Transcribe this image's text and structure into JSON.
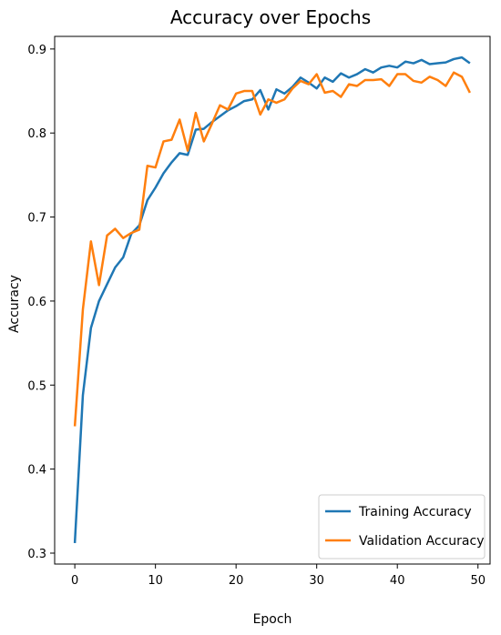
{
  "chart_data": {
    "type": "line",
    "title": "Accuracy over Epochs",
    "xlabel": "Epoch",
    "ylabel": "Accuracy",
    "xlim": [
      -2.5,
      51.5
    ],
    "ylim": [
      0.287,
      0.915
    ],
    "xticks": [
      0,
      10,
      20,
      30,
      40,
      50
    ],
    "yticks": [
      0.3,
      0.4,
      0.5,
      0.6,
      0.7,
      0.8,
      0.9
    ],
    "legend_position": "bottom-right",
    "grid": false,
    "x": [
      0,
      1,
      2,
      3,
      4,
      5,
      6,
      7,
      8,
      9,
      10,
      11,
      12,
      13,
      14,
      15,
      16,
      17,
      18,
      19,
      20,
      21,
      22,
      23,
      24,
      25,
      26,
      27,
      28,
      29,
      30,
      31,
      32,
      33,
      34,
      35,
      36,
      37,
      38,
      39,
      40,
      41,
      42,
      43,
      44,
      45,
      46,
      47,
      48,
      49
    ],
    "series": [
      {
        "name": "Training Accuracy",
        "color": "#1f77b4",
        "values": [
          0.312,
          0.488,
          0.568,
          0.6,
          0.62,
          0.64,
          0.652,
          0.68,
          0.69,
          0.72,
          0.735,
          0.752,
          0.765,
          0.776,
          0.774,
          0.804,
          0.805,
          0.813,
          0.82,
          0.827,
          0.832,
          0.838,
          0.84,
          0.851,
          0.828,
          0.852,
          0.847,
          0.855,
          0.866,
          0.86,
          0.853,
          0.866,
          0.861,
          0.871,
          0.866,
          0.87,
          0.876,
          0.872,
          0.878,
          0.88,
          0.878,
          0.885,
          0.883,
          0.887,
          0.882,
          0.883,
          0.884,
          0.888,
          0.89,
          0.883
        ]
      },
      {
        "name": "Validation Accuracy",
        "color": "#ff7f0e",
        "values": [
          0.451,
          0.59,
          0.671,
          0.619,
          0.678,
          0.686,
          0.675,
          0.681,
          0.685,
          0.761,
          0.759,
          0.79,
          0.792,
          0.816,
          0.779,
          0.824,
          0.79,
          0.811,
          0.833,
          0.828,
          0.847,
          0.85,
          0.85,
          0.822,
          0.84,
          0.836,
          0.84,
          0.853,
          0.862,
          0.858,
          0.87,
          0.848,
          0.85,
          0.843,
          0.858,
          0.856,
          0.863,
          0.863,
          0.864,
          0.856,
          0.87,
          0.87,
          0.862,
          0.86,
          0.867,
          0.863,
          0.856,
          0.872,
          0.867,
          0.848
        ]
      }
    ]
  }
}
